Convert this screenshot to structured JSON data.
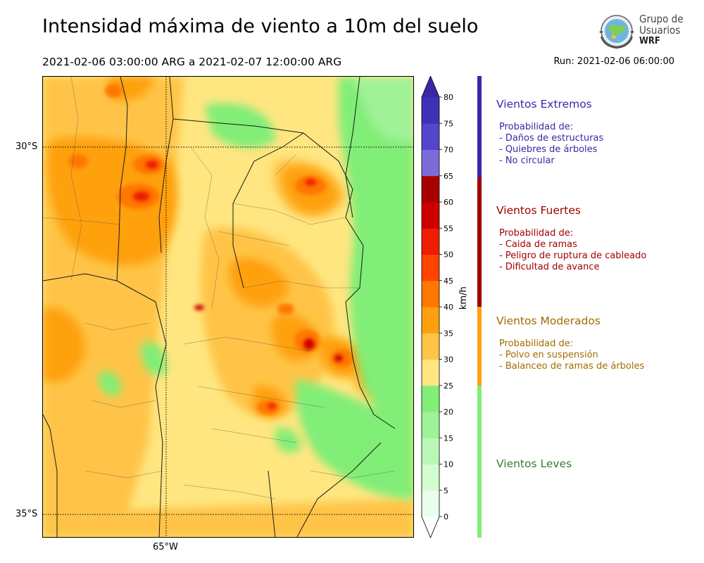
{
  "header": {
    "title": "Intensidad máxima de viento a 10m del suelo",
    "period": "2021-02-06 03:00:00 ARG  a  2021-02-07 12:00:00 ARG",
    "run": "Run: 2021-02-06 06:00:00"
  },
  "logo": {
    "line1": "Grupo de",
    "line2": "Usuarios",
    "line3": "WRF"
  },
  "map": {
    "lat_labels": [
      "30°S",
      "35°S"
    ],
    "lon_labels": [
      "65°W"
    ]
  },
  "colorbar": {
    "units": "km/h",
    "ticks": [
      "0",
      "5",
      "10",
      "15",
      "20",
      "25",
      "30",
      "35",
      "40",
      "45",
      "50",
      "55",
      "60",
      "65",
      "70",
      "75",
      "80"
    ],
    "colors": [
      "#eaffea",
      "#d4fcd1",
      "#baf7b5",
      "#9ff298",
      "#81ee77",
      "#ffe680",
      "#ffc447",
      "#ffa010",
      "#ff7700",
      "#ff4400",
      "#ee1c00",
      "#cc0000",
      "#a60000",
      "#7c6cda",
      "#5545cc",
      "#4030b8"
    ]
  },
  "categories": [
    {
      "title": "Vientos Extremos",
      "color": "#3a27a6",
      "lines": [
        "Probabilidad de:",
        "- Daños de estructuras",
        "- Quiebres de árboles",
        "- No circular"
      ]
    },
    {
      "title": "Vientos Fuertes",
      "color": "#a00000",
      "lines": [
        "Probabilidad de:",
        "- Caida de ramas",
        "- Peligro de ruptura de cableado",
        "- Dificultad de avance"
      ]
    },
    {
      "title": "Vientos Moderados",
      "color": "#a36b00",
      "lines": [
        "Probabilidad de:",
        "- Polvo en suspensión",
        "- Balanceo de ramas de árboles"
      ]
    },
    {
      "title": "Vientos Leves",
      "color": "#3a7a36",
      "lines": []
    }
  ]
}
